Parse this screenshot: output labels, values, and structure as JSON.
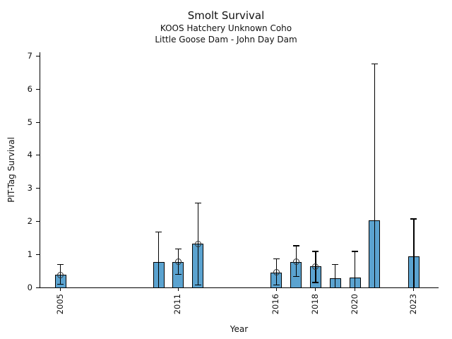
{
  "chart_data": {
    "type": "bar",
    "title": "Smolt Survival",
    "subtitle1": "KOOS Hatchery Unknown Coho",
    "subtitle2": "Little Goose Dam - John Day Dam",
    "xlabel": "Year",
    "ylabel": "PIT-Tag Survival",
    "ylim": [
      0,
      7.1
    ],
    "xlim": [
      2004,
      2024.3
    ],
    "yticks": [
      0,
      1,
      2,
      3,
      4,
      5,
      6,
      7
    ],
    "xticks": [
      2005,
      2011,
      2016,
      2018,
      2020,
      2023
    ],
    "grid": false,
    "legend_position": "none",
    "colors": {
      "bar_fill": "#5BA3D0",
      "bar_edge": "#000000",
      "error_bar": "#000000",
      "marker_edge": "#333333",
      "background": "#FFFFFF",
      "text": "#111111"
    },
    "series": [
      {
        "name": "PIT-Tag Survival",
        "points": [
          {
            "year": 2005,
            "value": 0.39,
            "ci_low": 0.11,
            "ci_high": 0.7,
            "marker": true
          },
          {
            "year": 2010,
            "value": 0.77,
            "ci_low": 0.0,
            "ci_high": 1.69,
            "marker": false
          },
          {
            "year": 2011,
            "value": 0.78,
            "ci_low": 0.41,
            "ci_high": 1.18,
            "marker": true
          },
          {
            "year": 2012,
            "value": 1.33,
            "ci_low": 0.09,
            "ci_high": 2.56,
            "marker": true
          },
          {
            "year": 2016,
            "value": 0.46,
            "ci_low": 0.08,
            "ci_high": 0.87,
            "marker": true
          },
          {
            "year": 2017,
            "value": 0.78,
            "ci_low": 0.34,
            "ci_high": 1.27,
            "marker": true
          },
          {
            "year": 2018,
            "value": 0.64,
            "ci_low": 0.16,
            "ci_high": 1.1,
            "marker": true
          },
          {
            "year": 2019,
            "value": 0.29,
            "ci_low": 0.0,
            "ci_high": 0.7,
            "marker": false
          },
          {
            "year": 2020,
            "value": 0.3,
            "ci_low": 0.0,
            "ci_high": 1.1,
            "marker": false
          },
          {
            "year": 2021,
            "value": 2.03,
            "ci_low": 0.0,
            "ci_high": 6.76,
            "marker": false
          },
          {
            "year": 2023,
            "value": 0.95,
            "ci_low": 0.0,
            "ci_high": 2.08,
            "marker": false
          }
        ]
      }
    ]
  }
}
